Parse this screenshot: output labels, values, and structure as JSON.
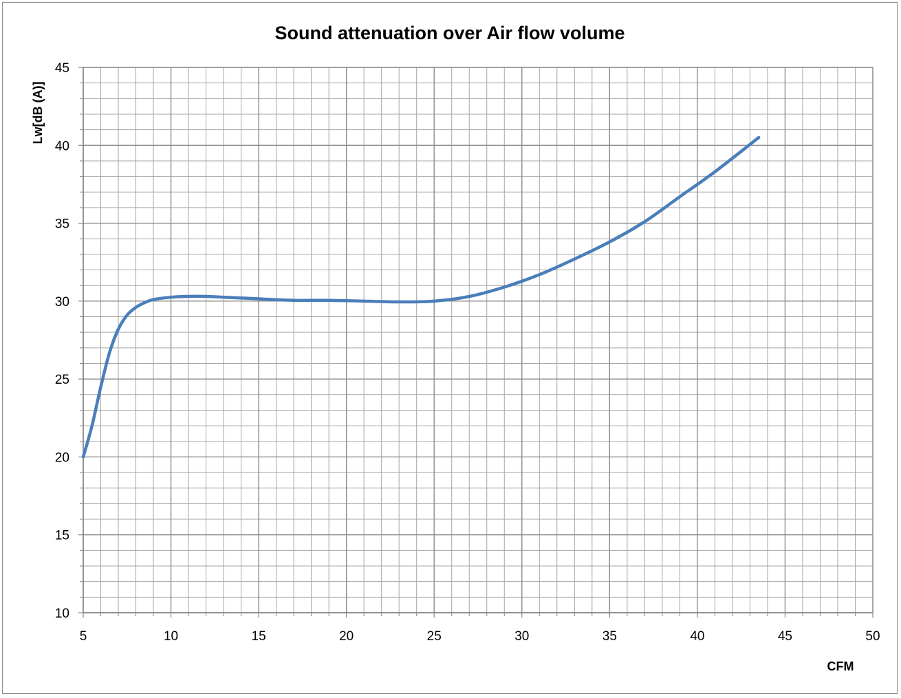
{
  "chart_data": {
    "type": "line",
    "title": "Sound attenuation over Air flow volume",
    "xlabel": "CFM",
    "ylabel": "Lw[dB (A)]",
    "xlim": [
      5,
      50
    ],
    "ylim": [
      10,
      45
    ],
    "x_ticks": [
      5,
      10,
      15,
      20,
      25,
      30,
      35,
      40,
      45,
      50
    ],
    "y_ticks": [
      10,
      15,
      20,
      25,
      30,
      35,
      40,
      45
    ],
    "x_minor_step": 1,
    "y_minor_step": 1,
    "grid": true,
    "legend": "none",
    "colors": {
      "line": "#4a7ebb",
      "grid": "#a6a6a6",
      "axis": "#868686"
    },
    "series": [
      {
        "x": [
          5,
          5.5,
          6,
          6.5,
          7,
          7.5,
          8,
          8.5,
          9,
          10,
          11,
          12,
          13,
          14,
          15,
          17,
          19,
          21,
          23,
          25,
          27,
          29,
          31,
          33,
          35,
          37,
          39,
          41,
          43.5
        ],
        "values": [
          20.0,
          22.0,
          24.5,
          26.7,
          28.2,
          29.1,
          29.6,
          29.9,
          30.1,
          30.25,
          30.3,
          30.3,
          30.25,
          30.2,
          30.15,
          30.05,
          30.05,
          30.0,
          29.95,
          30.0,
          30.3,
          30.9,
          31.7,
          32.7,
          33.8,
          35.1,
          36.7,
          38.3,
          40.5
        ]
      }
    ]
  }
}
